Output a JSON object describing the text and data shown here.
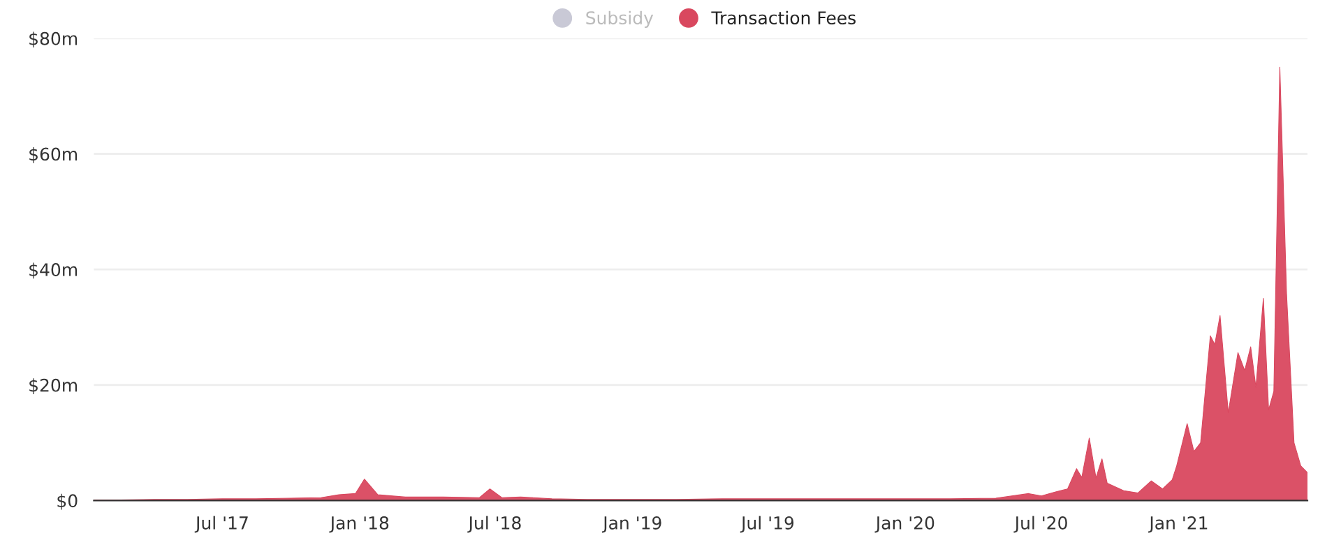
{
  "chart_data": {
    "type": "area",
    "legend": "top",
    "x": [
      "2017-01-10",
      "2017-02-15",
      "2017-04-01",
      "2017-05-15",
      "2017-07-01",
      "2017-08-15",
      "2017-10-01",
      "2017-11-10",
      "2017-12-04",
      "2017-12-26",
      "2018-01-07",
      "2018-01-25",
      "2018-03-03",
      "2018-04-22",
      "2018-06-10",
      "2018-06-24",
      "2018-07-10",
      "2018-08-04",
      "2018-09-15",
      "2018-11-01",
      "2019-01-01",
      "2019-03-01",
      "2019-05-01",
      "2019-07-01",
      "2019-09-01",
      "2019-11-01",
      "2020-01-01",
      "2020-03-01",
      "2020-05-01",
      "2020-06-14",
      "2020-07-01",
      "2020-07-20",
      "2020-08-05",
      "2020-08-17",
      "2020-08-24",
      "2020-09-03",
      "2020-09-12",
      "2020-09-20",
      "2020-09-27",
      "2020-10-19",
      "2020-11-07",
      "2020-11-25",
      "2020-12-10",
      "2020-12-23",
      "2020-12-29",
      "2021-01-12",
      "2021-01-21",
      "2021-01-30",
      "2021-02-12",
      "2021-02-18",
      "2021-02-25",
      "2021-03-08",
      "2021-03-21",
      "2021-03-30",
      "2021-04-07",
      "2021-04-14",
      "2021-04-24",
      "2021-05-01",
      "2021-05-08",
      "2021-05-16",
      "2021-05-25",
      "2021-06-04",
      "2021-06-13",
      "2021-06-22"
    ],
    "series": [
      {
        "name": "Subsidy",
        "color": "#c9c9d6",
        "values": [
          null,
          null,
          null,
          null,
          null,
          null,
          null,
          null,
          null,
          null,
          null,
          null,
          null,
          null,
          null,
          null,
          null,
          null,
          null,
          null,
          null,
          null,
          null,
          null,
          null,
          null,
          null,
          null,
          null,
          null,
          null,
          null,
          null,
          null,
          null,
          null,
          null,
          null,
          null,
          null,
          null,
          null,
          null,
          null,
          null,
          null,
          null,
          null,
          null,
          null,
          null,
          null,
          null,
          null,
          null,
          null,
          null,
          null,
          null,
          null,
          null,
          null,
          null,
          null
        ]
      },
      {
        "name": "Transaction Fees",
        "color": "#d9485f",
        "values": [
          0.1,
          0.1,
          0.2,
          0.2,
          0.3,
          0.3,
          0.4,
          0.5,
          1.0,
          1.2,
          3.7,
          1.0,
          0.6,
          0.6,
          0.5,
          2.0,
          0.5,
          0.6,
          0.3,
          0.2,
          0.2,
          0.2,
          0.3,
          0.3,
          0.3,
          0.3,
          0.3,
          0.3,
          0.4,
          1.2,
          0.8,
          1.5,
          2.0,
          5.5,
          4.0,
          10.8,
          3.9,
          7.2,
          3.0,
          1.7,
          1.3,
          3.4,
          2.0,
          3.6,
          6.0,
          13.3,
          8.5,
          10.0,
          28.5,
          27.0,
          32.0,
          15.2,
          25.6,
          22.5,
          26.6,
          19.6,
          35.0,
          15.7,
          18.9,
          75.0,
          35.8,
          10.0,
          6.0,
          4.8
        ]
      }
    ],
    "xlim": [
      "2017-01-10",
      "2021-06-22"
    ],
    "xticks": [
      {
        "value": "2017-07-01",
        "label": "Jul '17"
      },
      {
        "value": "2018-01-01",
        "label": "Jan '18"
      },
      {
        "value": "2018-07-01",
        "label": "Jul '18"
      },
      {
        "value": "2019-01-01",
        "label": "Jan '19"
      },
      {
        "value": "2019-07-01",
        "label": "Jul '19"
      },
      {
        "value": "2020-01-01",
        "label": "Jan '20"
      },
      {
        "value": "2020-07-01",
        "label": "Jul '20"
      },
      {
        "value": "2021-01-01",
        "label": "Jan '21"
      }
    ],
    "ylim": [
      0,
      80
    ],
    "yticks": [
      {
        "value": 0,
        "label": "$0"
      },
      {
        "value": 20,
        "label": "$20m"
      },
      {
        "value": 40,
        "label": "$40m"
      },
      {
        "value": 60,
        "label": "$60m"
      },
      {
        "value": 80,
        "label": "$80m"
      }
    ],
    "grid": "y"
  }
}
